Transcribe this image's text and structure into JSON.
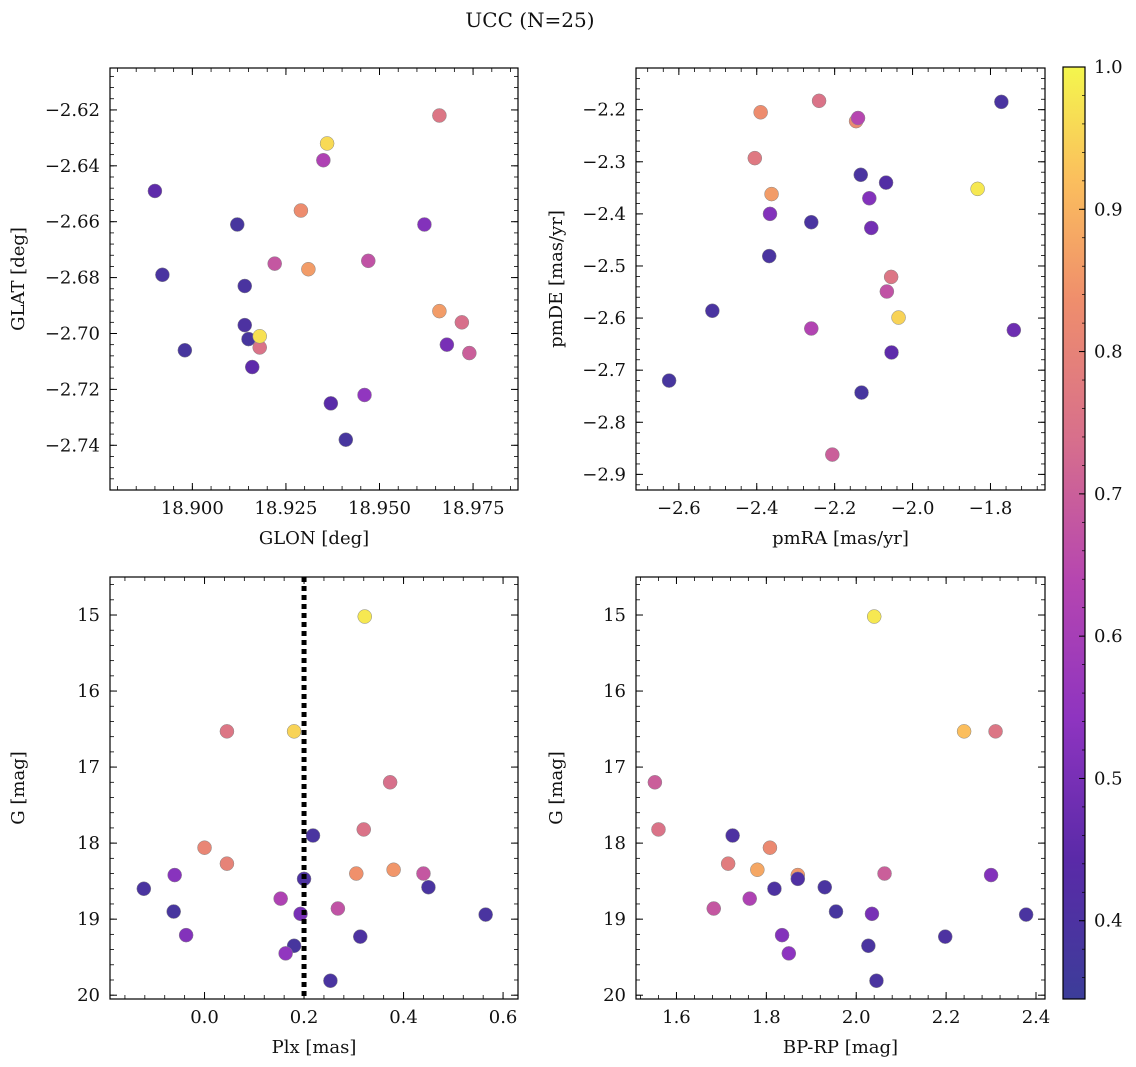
{
  "figure": {
    "title": "UCC (N=25)"
  },
  "colorbar": {
    "range": [
      0.345,
      1.0
    ],
    "ticks": [
      0.4,
      0.5,
      0.6,
      0.7,
      0.8,
      0.9,
      1.0
    ],
    "tick_labels": [
      "0.4",
      "0.5",
      "0.6",
      "0.7",
      "0.8",
      "0.9",
      "1.0"
    ],
    "colormap": "plasma"
  },
  "chart_data": [
    {
      "type": "scatter",
      "xlabel": "GLON [deg]",
      "ylabel": "GLAT [deg]",
      "xlim": [
        18.878,
        18.987
      ],
      "ylim": [
        -2.756,
        -2.605
      ],
      "xticks": [
        18.9,
        18.925,
        18.95,
        18.975
      ],
      "xtick_labels": [
        "18.900",
        "18.925",
        "18.950",
        "18.975"
      ],
      "yticks": [
        -2.62,
        -2.64,
        -2.66,
        -2.68,
        -2.7,
        -2.72,
        -2.74
      ],
      "ytick_labels": [
        "−2.62",
        "−2.64",
        "−2.66",
        "−2.68",
        "−2.70",
        "−2.72",
        "−2.74"
      ],
      "invert_y": false,
      "points": [
        {
          "x": 18.89,
          "y": -2.649,
          "c": 0.45
        },
        {
          "x": 18.892,
          "y": -2.679,
          "c": 0.39
        },
        {
          "x": 18.898,
          "y": -2.706,
          "c": 0.38
        },
        {
          "x": 18.912,
          "y": -2.661,
          "c": 0.38
        },
        {
          "x": 18.914,
          "y": -2.683,
          "c": 0.39
        },
        {
          "x": 18.914,
          "y": -2.697,
          "c": 0.4
        },
        {
          "x": 18.915,
          "y": -2.702,
          "c": 0.38
        },
        {
          "x": 18.916,
          "y": -2.712,
          "c": 0.45
        },
        {
          "x": 18.918,
          "y": -2.705,
          "c": 0.75
        },
        {
          "x": 18.918,
          "y": -2.701,
          "c": 0.97
        },
        {
          "x": 18.922,
          "y": -2.675,
          "c": 0.68
        },
        {
          "x": 18.929,
          "y": -2.656,
          "c": 0.83
        },
        {
          "x": 18.931,
          "y": -2.677,
          "c": 0.86
        },
        {
          "x": 18.935,
          "y": -2.638,
          "c": 0.62
        },
        {
          "x": 18.936,
          "y": -2.632,
          "c": 0.96
        },
        {
          "x": 18.937,
          "y": -2.725,
          "c": 0.44
        },
        {
          "x": 18.941,
          "y": -2.738,
          "c": 0.38
        },
        {
          "x": 18.946,
          "y": -2.722,
          "c": 0.55
        },
        {
          "x": 18.947,
          "y": -2.674,
          "c": 0.67
        },
        {
          "x": 18.962,
          "y": -2.661,
          "c": 0.52
        },
        {
          "x": 18.966,
          "y": -2.622,
          "c": 0.76
        },
        {
          "x": 18.966,
          "y": -2.692,
          "c": 0.86
        },
        {
          "x": 18.968,
          "y": -2.704,
          "c": 0.5
        },
        {
          "x": 18.972,
          "y": -2.696,
          "c": 0.74
        },
        {
          "x": 18.974,
          "y": -2.707,
          "c": 0.7
        }
      ]
    },
    {
      "type": "scatter",
      "xlabel": "pmRA [mas/yr]",
      "ylabel": "pmDE [mas/yr]",
      "xlim": [
        -2.71,
        -1.66
      ],
      "ylim": [
        -2.93,
        -2.12
      ],
      "xticks": [
        -2.6,
        -2.4,
        -2.2,
        -2.0,
        -1.8
      ],
      "xtick_labels": [
        "−2.6",
        "−2.4",
        "−2.2",
        "−2.0",
        "−1.8"
      ],
      "yticks": [
        -2.2,
        -2.3,
        -2.4,
        -2.5,
        -2.6,
        -2.7,
        -2.8,
        -2.9
      ],
      "ytick_labels": [
        "−2.2",
        "−2.3",
        "−2.4",
        "−2.5",
        "−2.6",
        "−2.7",
        "−2.8",
        "−2.9"
      ],
      "invert_y": false,
      "points": [
        {
          "x": -2.625,
          "y": -2.72,
          "c": 0.38
        },
        {
          "x": -2.514,
          "y": -2.586,
          "c": 0.39
        },
        {
          "x": -2.405,
          "y": -2.293,
          "c": 0.77
        },
        {
          "x": -2.39,
          "y": -2.205,
          "c": 0.83
        },
        {
          "x": -2.368,
          "y": -2.481,
          "c": 0.39
        },
        {
          "x": -2.366,
          "y": -2.4,
          "c": 0.52
        },
        {
          "x": -2.362,
          "y": -2.362,
          "c": 0.86
        },
        {
          "x": -2.26,
          "y": -2.416,
          "c": 0.39
        },
        {
          "x": -2.26,
          "y": -2.62,
          "c": 0.63
        },
        {
          "x": -2.24,
          "y": -2.183,
          "c": 0.75
        },
        {
          "x": -2.206,
          "y": -2.862,
          "c": 0.7
        },
        {
          "x": -2.145,
          "y": -2.222,
          "c": 0.82
        },
        {
          "x": -2.14,
          "y": -2.216,
          "c": 0.64
        },
        {
          "x": -2.133,
          "y": -2.325,
          "c": 0.39
        },
        {
          "x": -2.131,
          "y": -2.743,
          "c": 0.38
        },
        {
          "x": -2.111,
          "y": -2.37,
          "c": 0.52
        },
        {
          "x": -2.106,
          "y": -2.427,
          "c": 0.49
        },
        {
          "x": -2.068,
          "y": -2.34,
          "c": 0.42
        },
        {
          "x": -2.066,
          "y": -2.549,
          "c": 0.67
        },
        {
          "x": -2.055,
          "y": -2.521,
          "c": 0.76
        },
        {
          "x": -2.054,
          "y": -2.666,
          "c": 0.45
        },
        {
          "x": -2.036,
          "y": -2.599,
          "c": 0.95
        },
        {
          "x": -1.833,
          "y": -2.352,
          "c": 0.98
        },
        {
          "x": -1.772,
          "y": -2.185,
          "c": 0.39
        },
        {
          "x": -1.74,
          "y": -2.623,
          "c": 0.48
        }
      ]
    },
    {
      "type": "scatter",
      "xlabel": "Plx [mas]",
      "ylabel": "G [mag]",
      "xlim": [
        -0.19,
        0.63
      ],
      "ylim": [
        14.5,
        20.05
      ],
      "xticks": [
        0.0,
        0.2,
        0.4,
        0.6
      ],
      "xtick_labels": [
        "0.0",
        "0.2",
        "0.4",
        "0.6"
      ],
      "yticks": [
        15,
        16,
        17,
        18,
        19,
        20
      ],
      "ytick_labels": [
        "15",
        "16",
        "17",
        "18",
        "19",
        "20"
      ],
      "invert_y": true,
      "vline": {
        "x": 0.2
      },
      "points": [
        {
          "x": 0.322,
          "y": 15.02,
          "c": 0.98
        },
        {
          "x": 0.045,
          "y": 16.53,
          "c": 0.76
        },
        {
          "x": 0.18,
          "y": 16.53,
          "c": 0.95
        },
        {
          "x": 0.373,
          "y": 17.2,
          "c": 0.74
        },
        {
          "x": 0.218,
          "y": 17.9,
          "c": 0.39
        },
        {
          "x": 0.32,
          "y": 17.82,
          "c": 0.75
        },
        {
          "x": 0.0,
          "y": 18.06,
          "c": 0.81
        },
        {
          "x": 0.045,
          "y": 18.27,
          "c": 0.8
        },
        {
          "x": 0.38,
          "y": 18.35,
          "c": 0.85
        },
        {
          "x": 0.305,
          "y": 18.4,
          "c": 0.84
        },
        {
          "x": 0.44,
          "y": 18.4,
          "c": 0.68
        },
        {
          "x": -0.06,
          "y": 18.42,
          "c": 0.53
        },
        {
          "x": 0.2,
          "y": 18.47,
          "c": 0.4
        },
        {
          "x": 0.45,
          "y": 18.58,
          "c": 0.39
        },
        {
          "x": -0.122,
          "y": 18.6,
          "c": 0.39
        },
        {
          "x": 0.153,
          "y": 18.73,
          "c": 0.62
        },
        {
          "x": 0.268,
          "y": 18.86,
          "c": 0.67
        },
        {
          "x": -0.062,
          "y": 18.9,
          "c": 0.38
        },
        {
          "x": 0.193,
          "y": 18.93,
          "c": 0.5
        },
        {
          "x": 0.565,
          "y": 18.94,
          "c": 0.39
        },
        {
          "x": -0.037,
          "y": 19.21,
          "c": 0.52
        },
        {
          "x": 0.313,
          "y": 19.23,
          "c": 0.4
        },
        {
          "x": 0.18,
          "y": 19.35,
          "c": 0.38
        },
        {
          "x": 0.163,
          "y": 19.45,
          "c": 0.55
        },
        {
          "x": 0.253,
          "y": 19.81,
          "c": 0.39
        }
      ]
    },
    {
      "type": "scatter",
      "xlabel": "BP-RP [mag]",
      "ylabel": "G [mag]",
      "xlim": [
        1.51,
        2.42
      ],
      "ylim": [
        14.5,
        20.05
      ],
      "xticks": [
        1.6,
        1.8,
        2.0,
        2.2,
        2.4
      ],
      "xtick_labels": [
        "1.6",
        "1.8",
        "2.0",
        "2.2",
        "2.4"
      ],
      "yticks": [
        15,
        16,
        17,
        18,
        19,
        20
      ],
      "ytick_labels": [
        "15",
        "16",
        "17",
        "18",
        "19",
        "20"
      ],
      "invert_y": true,
      "points": [
        {
          "x": 2.04,
          "y": 15.02,
          "c": 0.98
        },
        {
          "x": 2.24,
          "y": 16.53,
          "c": 0.92
        },
        {
          "x": 2.31,
          "y": 16.53,
          "c": 0.76
        },
        {
          "x": 1.552,
          "y": 17.2,
          "c": 0.7
        },
        {
          "x": 1.56,
          "y": 17.82,
          "c": 0.75
        },
        {
          "x": 1.725,
          "y": 17.9,
          "c": 0.4
        },
        {
          "x": 1.808,
          "y": 18.06,
          "c": 0.82
        },
        {
          "x": 1.715,
          "y": 18.27,
          "c": 0.78
        },
        {
          "x": 1.78,
          "y": 18.35,
          "c": 0.88
        },
        {
          "x": 1.87,
          "y": 18.42,
          "c": 0.85
        },
        {
          "x": 2.063,
          "y": 18.4,
          "c": 0.7
        },
        {
          "x": 2.3,
          "y": 18.42,
          "c": 0.52
        },
        {
          "x": 1.87,
          "y": 18.47,
          "c": 0.41
        },
        {
          "x": 1.93,
          "y": 18.58,
          "c": 0.39
        },
        {
          "x": 1.818,
          "y": 18.6,
          "c": 0.4
        },
        {
          "x": 1.763,
          "y": 18.73,
          "c": 0.62
        },
        {
          "x": 1.683,
          "y": 18.86,
          "c": 0.68
        },
        {
          "x": 1.955,
          "y": 18.9,
          "c": 0.38
        },
        {
          "x": 2.035,
          "y": 18.93,
          "c": 0.5
        },
        {
          "x": 2.378,
          "y": 18.94,
          "c": 0.39
        },
        {
          "x": 1.835,
          "y": 19.21,
          "c": 0.52
        },
        {
          "x": 2.198,
          "y": 19.23,
          "c": 0.4
        },
        {
          "x": 2.027,
          "y": 19.35,
          "c": 0.39
        },
        {
          "x": 1.85,
          "y": 19.45,
          "c": 0.54
        },
        {
          "x": 2.045,
          "y": 19.81,
          "c": 0.39
        }
      ]
    }
  ]
}
